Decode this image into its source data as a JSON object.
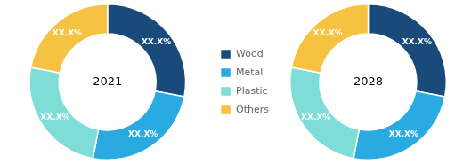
{
  "chart_data": [
    {
      "type": "doughnut",
      "categories": [
        "Wood",
        "Metal",
        "Plastic",
        "Others"
      ],
      "values": [
        28,
        25,
        25,
        22
      ],
      "value_labels": [
        "XX.X%",
        "XX.X%",
        "XX.X%",
        "XX.X%"
      ],
      "colors": [
        "#1a4a7a",
        "#29abe2",
        "#7eddd6",
        "#f5c242"
      ],
      "annotations": [
        "2021"
      ],
      "data_labels": true,
      "legend": "right"
    },
    {
      "type": "doughnut",
      "categories": [
        "Wood",
        "Metal",
        "Plastic",
        "Others"
      ],
      "values": [
        28,
        25,
        25,
        22
      ],
      "value_labels": [
        "XX.X%",
        "XX.X%",
        "XX.X%",
        "XX.X%"
      ],
      "colors": [
        "#1a4a7a",
        "#29abe2",
        "#7eddd6",
        "#f5c242"
      ],
      "annotations": [
        "2028"
      ],
      "data_labels": true
    }
  ]
}
